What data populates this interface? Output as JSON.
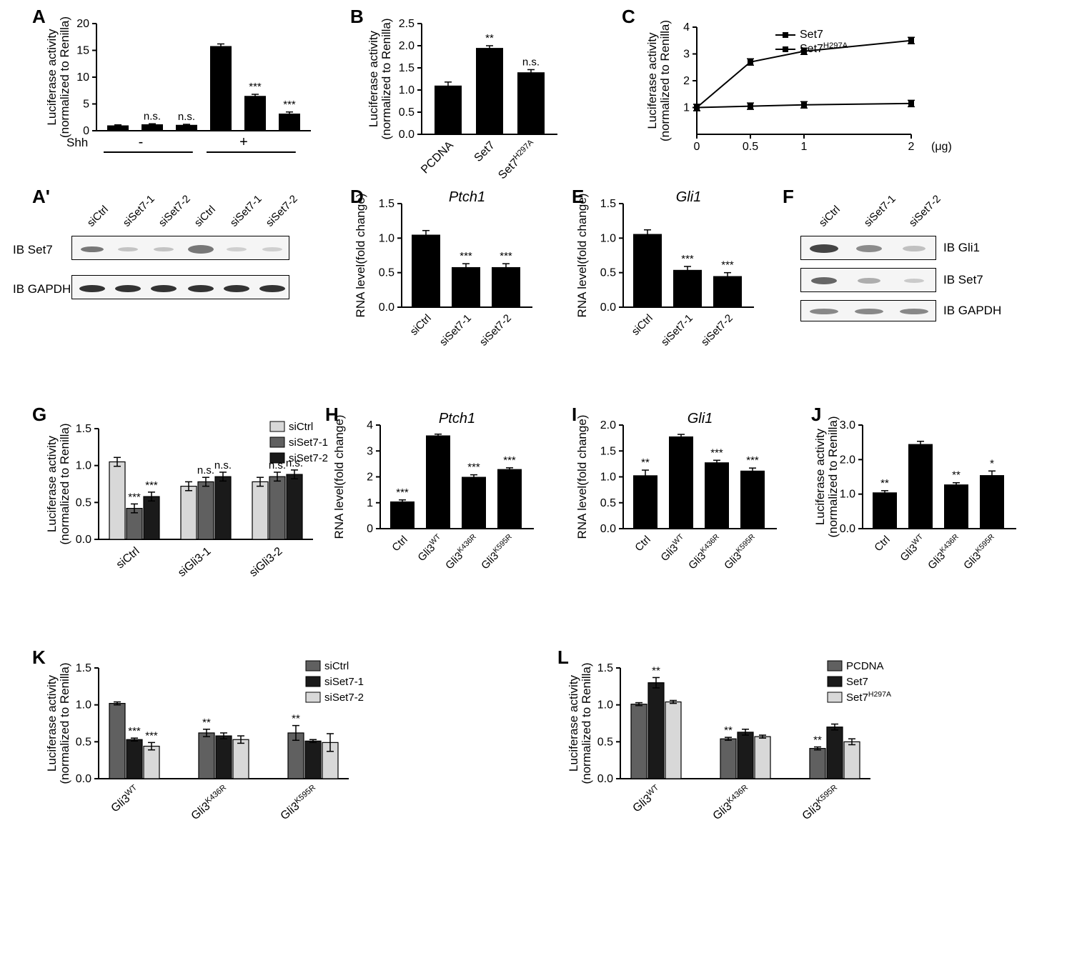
{
  "labels": {
    "A": "A",
    "Ap": "A'",
    "B": "B",
    "C": "C",
    "D": "D",
    "E": "E",
    "F": "F",
    "G": "G",
    "H": "H",
    "I": "I",
    "J": "J",
    "K": "K",
    "L": "L"
  },
  "ylab_luc1": "Luciferase activity",
  "ylab_luc2": "(normalized to Renilla)",
  "ylab_rna": "RNA level(fold change)",
  "A": {
    "shh": "Shh",
    "cats": [
      "siCtrl",
      "siSet7-1",
      "siSet7-2",
      "siCtrl",
      "siSet7-1",
      "siSet7-2"
    ],
    "vals": [
      1.0,
      1.2,
      1.1,
      15.8,
      6.5,
      3.2
    ],
    "errs": [
      0.1,
      0.1,
      0.1,
      0.4,
      0.3,
      0.3
    ],
    "sig": [
      "",
      "n.s.",
      "n.s.",
      "",
      "***",
      "***"
    ],
    "ymax": 20,
    "yticks": [
      0,
      5,
      10,
      15,
      20
    ],
    "minus": "-",
    "plus": "+"
  },
  "Ap": {
    "row1": "IB Set7",
    "row2": "IB GAPDH"
  },
  "B": {
    "cats": [
      "PCDNA",
      "Set7",
      "Set7H297A"
    ],
    "vals": [
      1.1,
      1.95,
      1.4
    ],
    "errs": [
      0.08,
      0.05,
      0.06
    ],
    "sig": [
      "",
      "**",
      "n.s."
    ],
    "ymax": 2.5,
    "yticks": [
      0.0,
      0.5,
      1.0,
      1.5,
      2.0,
      2.5
    ],
    "sup": "H297A"
  },
  "C": {
    "x": [
      0,
      0.5,
      1,
      2
    ],
    "set7": [
      1.0,
      2.7,
      3.1,
      3.5
    ],
    "mut": [
      1.0,
      1.05,
      1.1,
      1.15
    ],
    "errs": 0.12,
    "ymax": 4,
    "yticks": [
      1,
      2,
      3,
      4
    ],
    "xlabel": "(μg)",
    "legend": [
      "Set7",
      "Set7H297A"
    ]
  },
  "D": {
    "title": "Ptch1",
    "cats": [
      "siCtrl",
      "siSet7-1",
      "siSet7-2"
    ],
    "vals": [
      1.05,
      0.58,
      0.58
    ],
    "errs": [
      0.06,
      0.05,
      0.05
    ],
    "sig": [
      "",
      "***",
      "***"
    ],
    "ymax": 1.5,
    "yticks": [
      0.0,
      0.5,
      1.0,
      1.5
    ]
  },
  "E": {
    "title": "Gli1",
    "cats": [
      "siCtrl",
      "siSet7-1",
      "siSet7-2"
    ],
    "vals": [
      1.06,
      0.54,
      0.45
    ],
    "errs": [
      0.06,
      0.05,
      0.05
    ],
    "sig": [
      "",
      "***",
      "***"
    ],
    "ymax": 1.5,
    "yticks": [
      0.0,
      0.5,
      1.0,
      1.5
    ]
  },
  "F": {
    "cats": [
      "siCtrl",
      "siSet7-1",
      "siSet7-2"
    ],
    "rows": [
      "IB Gli1",
      "IB Set7",
      "IB GAPDH"
    ]
  },
  "G": {
    "groups": [
      "siCtrl",
      "siGli3-1",
      "siGli3-2"
    ],
    "legend": [
      "siCtrl",
      "siSet7-1",
      "siSet7-2"
    ],
    "vals": [
      [
        1.05,
        0.42,
        0.58
      ],
      [
        0.72,
        0.78,
        0.85
      ],
      [
        0.78,
        0.85,
        0.88
      ]
    ],
    "errs": 0.06,
    "sig": [
      [
        "",
        "***",
        "***"
      ],
      [
        "",
        "n.s.",
        "n.s."
      ],
      [
        "",
        "n.s.",
        "n.s."
      ]
    ],
    "ymax": 1.5,
    "yticks": [
      0.0,
      0.5,
      1.0,
      1.5
    ]
  },
  "H": {
    "title": "Ptch1",
    "cats": [
      "Ctrl",
      "Gli3WT",
      "Gli3K436R",
      "Gli3K595R"
    ],
    "vals": [
      1.05,
      3.6,
      2.0,
      2.3
    ],
    "errs": [
      0.06,
      0.05,
      0.08,
      0.05
    ],
    "sig": [
      "***",
      "",
      "***",
      "***"
    ],
    "ymax": 4,
    "yticks": [
      0,
      1,
      2,
      3,
      4
    ]
  },
  "I": {
    "title": "Gli1",
    "cats": [
      "Ctrl",
      "Gli3WT",
      "Gli3K436R",
      "Gli3K595R"
    ],
    "vals": [
      1.03,
      1.78,
      1.28,
      1.12
    ],
    "errs": [
      0.1,
      0.04,
      0.04,
      0.05
    ],
    "sig": [
      "**",
      "",
      "***",
      "***"
    ],
    "ymax": 2.0,
    "yticks": [
      0.0,
      0.5,
      1.0,
      1.5,
      2.0
    ]
  },
  "J": {
    "cats": [
      "Ctrl",
      "Gli3WT",
      "Gli3K436R",
      "Gli3K595R"
    ],
    "vals": [
      1.05,
      2.45,
      1.28,
      1.55
    ],
    "errs": [
      0.05,
      0.08,
      0.05,
      0.12
    ],
    "sig": [
      "**",
      "",
      "**",
      "*"
    ],
    "ymax": 3,
    "yticks": [
      0,
      1,
      2,
      3
    ]
  },
  "K": {
    "groups": [
      "Gli3WT",
      "Gli3K436R",
      "Gli3K595R"
    ],
    "legend": [
      "siCtrl",
      "siSet7-1",
      "siSet7-2"
    ],
    "vals": [
      [
        1.02,
        0.53,
        0.44
      ],
      [
        0.62,
        0.58,
        0.53
      ],
      [
        0.62,
        0.51,
        0.49
      ]
    ],
    "errs": [
      [
        0.02,
        0.02,
        0.05
      ],
      [
        0.05,
        0.04,
        0.05
      ],
      [
        0.1,
        0.02,
        0.12
      ]
    ],
    "sig": [
      [
        "",
        "***",
        "***"
      ],
      [
        "**",
        "",
        ""
      ],
      [
        "**",
        "",
        ""
      ]
    ],
    "ymax": 1.5,
    "yticks": [
      0.0,
      0.5,
      1.0,
      1.5
    ]
  },
  "L": {
    "groups": [
      "Gli3WT",
      "Gli3K436R",
      "Gli3K595R"
    ],
    "legend": [
      "PCDNA",
      "Set7",
      "Set7H297A"
    ],
    "vals": [
      [
        1.01,
        1.3,
        1.04
      ],
      [
        0.54,
        0.63,
        0.57
      ],
      [
        0.41,
        0.7,
        0.5
      ]
    ],
    "errs": [
      [
        0.02,
        0.07,
        0.02
      ],
      [
        0.02,
        0.04,
        0.02
      ],
      [
        0.02,
        0.04,
        0.04
      ]
    ],
    "sig": [
      [
        "",
        "**",
        ""
      ],
      [
        "**",
        "",
        ""
      ],
      [
        "**",
        "",
        ""
      ]
    ],
    "ymax": 1.5,
    "yticks": [
      0.0,
      0.5,
      1.0,
      1.5
    ]
  }
}
